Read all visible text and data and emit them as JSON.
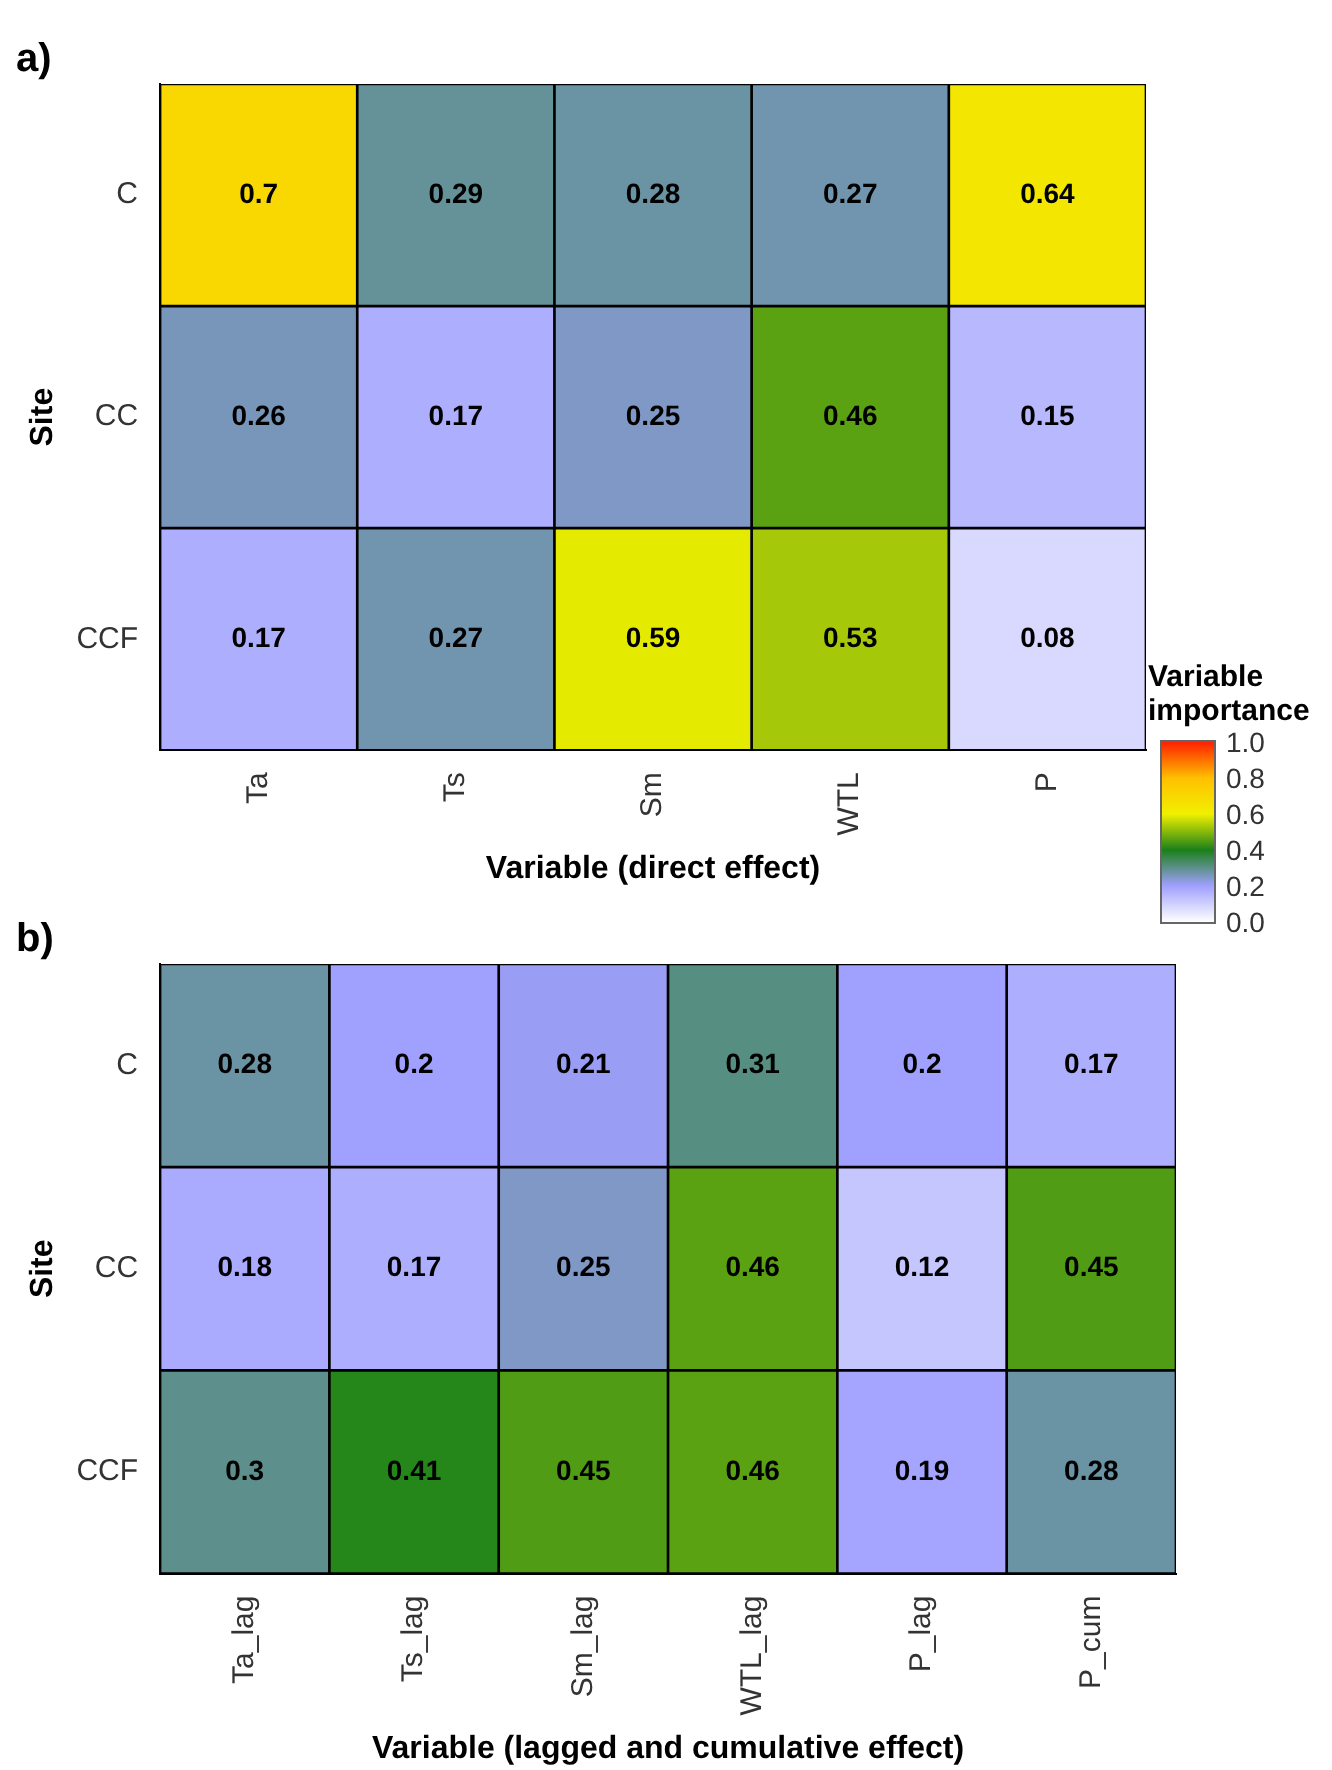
{
  "chart_data": [
    {
      "type": "heatmap",
      "title": "a)",
      "xlabel": "Variable (direct effect)",
      "ylabel": "Site",
      "categories": [
        "Ta",
        "Ts",
        "Sm",
        "WTL",
        "P"
      ],
      "y_categories": [
        "C",
        "CC",
        "CCF"
      ],
      "cells": [
        [
          0.7,
          0.29,
          0.28,
          0.27,
          0.64
        ],
        [
          0.26,
          0.17,
          0.25,
          0.46,
          0.15
        ],
        [
          0.17,
          0.27,
          0.59,
          0.53,
          0.08
        ]
      ],
      "data_labels": true,
      "clabel": "Variable importance",
      "clim": [
        0,
        1
      ],
      "cticks": [
        {
          "value": 0,
          "label": "0.0"
        },
        {
          "value": 0.2,
          "label": "0.2"
        },
        {
          "value": 0.4,
          "label": "0.4"
        },
        {
          "value": 0.6,
          "label": "0.6"
        },
        {
          "value": 0.8,
          "label": "0.8"
        },
        {
          "value": 1,
          "label": "1.0"
        }
      ]
    },
    {
      "type": "heatmap",
      "title": "b)",
      "xlabel": "Variable (lagged and cumulative effect)",
      "ylabel": "Site",
      "categories": [
        "Ta_lag",
        "Ts_lag",
        "Sm_lag",
        "WTL_lag",
        "P_lag",
        "P_cum"
      ],
      "y_categories": [
        "C",
        "CC",
        "CCF"
      ],
      "cells": [
        [
          0.28,
          0.2,
          0.21,
          0.31,
          0.2,
          0.17
        ],
        [
          0.18,
          0.17,
          0.25,
          0.46,
          0.12,
          0.45
        ],
        [
          0.3,
          0.41,
          0.45,
          0.46,
          0.19,
          0.28
        ]
      ],
      "data_labels": true
    }
  ]
}
